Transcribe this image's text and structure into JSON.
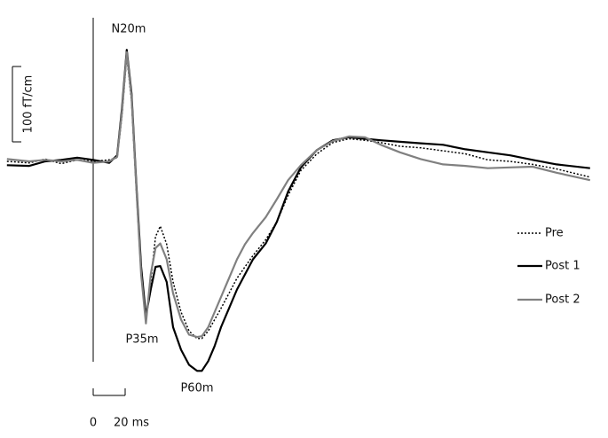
{
  "chart_data": {
    "type": "line",
    "x": [
      -54,
      -40,
      -30,
      -20,
      -10,
      0,
      10,
      15,
      18,
      21,
      24,
      27,
      30,
      33,
      36,
      39,
      42,
      46,
      50,
      55,
      60,
      65,
      68,
      72,
      76,
      80,
      85,
      90,
      95,
      100,
      108,
      115,
      122,
      130,
      140,
      150,
      160,
      170,
      180,
      192,
      205,
      219,
      233,
      247,
      261,
      275,
      290,
      311
    ],
    "series": [
      {
        "name": "Pre",
        "color": "#000000",
        "dash": "dotted",
        "width": 1.5,
        "values": [
          0,
          -2,
          3,
          -3,
          2,
          0,
          2,
          5,
          60,
          140,
          80,
          -40,
          -150,
          -210,
          -160,
          -100,
          -86,
          -110,
          -160,
          -200,
          -225,
          -235,
          -235,
          -225,
          -210,
          -195,
          -175,
          -155,
          -140,
          -125,
          -104,
          -80,
          -45,
          -12,
          10,
          25,
          30,
          28,
          25,
          20,
          18,
          14,
          10,
          2,
          0,
          -4,
          -10,
          -21
        ]
      },
      {
        "name": "Post 1",
        "color": "#000000",
        "dash": "solid",
        "width": 2.2,
        "values": [
          -5,
          -6,
          0,
          2,
          5,
          2,
          -2,
          8,
          70,
          148,
          90,
          -30,
          -140,
          -205,
          -170,
          -140,
          -139,
          -160,
          -220,
          -250,
          -270,
          -278,
          -278,
          -265,
          -245,
          -220,
          -195,
          -170,
          -150,
          -130,
          -109,
          -80,
          -40,
          -8,
          15,
          28,
          32,
          30,
          28,
          26,
          24,
          22,
          16,
          12,
          8,
          2,
          -4,
          -9
        ]
      },
      {
        "name": "Post 2",
        "color": "#808080",
        "dash": "solid",
        "width": 2.2,
        "values": [
          3,
          0,
          2,
          0,
          2,
          -2,
          0,
          6,
          65,
          145,
          85,
          -35,
          -150,
          -215,
          -150,
          -115,
          -109,
          -130,
          -175,
          -210,
          -230,
          -233,
          -232,
          -220,
          -200,
          -180,
          -155,
          -130,
          -110,
          -95,
          -74,
          -50,
          -25,
          -5,
          15,
          27,
          33,
          32,
          22,
          12,
          3,
          -4,
          -6,
          -9,
          -8,
          -7,
          -15,
          -25
        ]
      }
    ],
    "xlim": [
      -55,
      315
    ],
    "ylim": [
      -300,
      200
    ],
    "annotations": [
      "N20m",
      "P35m",
      "P60m"
    ],
    "y_scale_bar": {
      "value": 100,
      "label": "100 fT/cm"
    },
    "x_scale_bar": [
      0,
      {
        "value": 20,
        "label": "20 ms"
      }
    ]
  }
}
